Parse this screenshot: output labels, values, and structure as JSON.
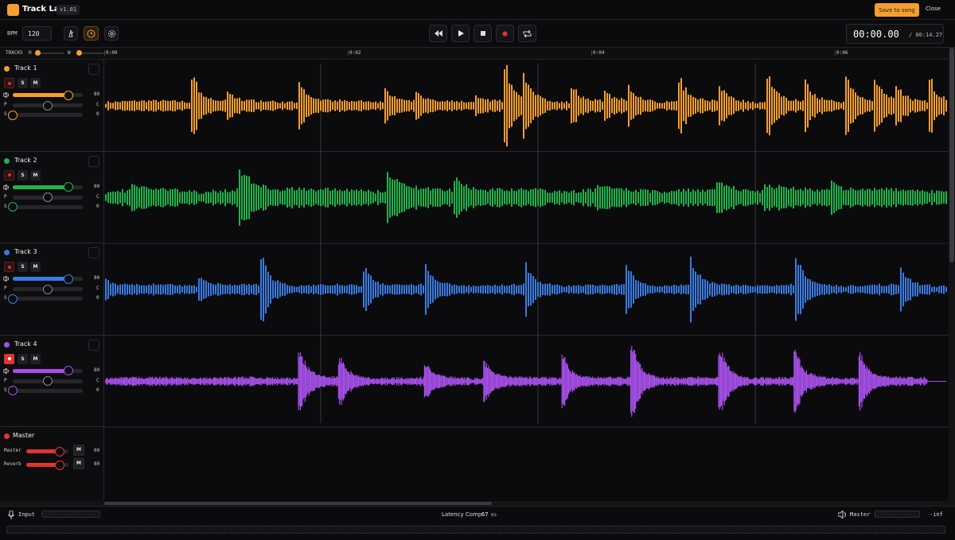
{
  "app": {
    "title": "Track Lab",
    "version": "v1.01",
    "save": "Save to song",
    "close": "Close"
  },
  "toolbar": {
    "bpm_label": "BPM",
    "bpm": 120,
    "time": "00:00.00",
    "total": "/ 00:14.27"
  },
  "ruler": {
    "tracks_label": "TRACKS",
    "h_label": "H",
    "w_label": "W",
    "times": [
      "0:00",
      "0:02",
      "0:04",
      "0:06"
    ]
  },
  "tracks": [
    {
      "name": "Track 1",
      "color": "#f59e2e",
      "armed": false,
      "solo": "S",
      "mute": "M",
      "volume": 80,
      "pan_label": "P",
      "pan": "C",
      "send_label": "S",
      "send": 0
    },
    {
      "name": "Track 2",
      "color": "#22b24c",
      "armed": false,
      "solo": "S",
      "mute": "M",
      "volume": 80,
      "pan_label": "P",
      "pan": "C",
      "send_label": "S",
      "send": 0
    },
    {
      "name": "Track 3",
      "color": "#3b7be0",
      "armed": false,
      "solo": "S",
      "mute": "M",
      "volume": 80,
      "pan_label": "P",
      "pan": "C",
      "send_label": "S",
      "send": 0
    },
    {
      "name": "Track 4",
      "color": "#a54fe6",
      "armed": true,
      "solo": "S",
      "mute": "M",
      "volume": 80,
      "pan_label": "P",
      "pan": "C",
      "send_label": "S",
      "send": 0
    }
  ],
  "master": {
    "title": "Master",
    "color": "#e0342f",
    "channels": [
      {
        "name": "Master",
        "mute": "M",
        "level": 80
      },
      {
        "name": "Reverb",
        "mute": "M",
        "level": 80
      }
    ]
  },
  "footer": {
    "input": "Input",
    "latency_label": "Latency Comp",
    "latency": 67,
    "latency_unit": "ms",
    "master": "Master",
    "level": "-inf"
  }
}
